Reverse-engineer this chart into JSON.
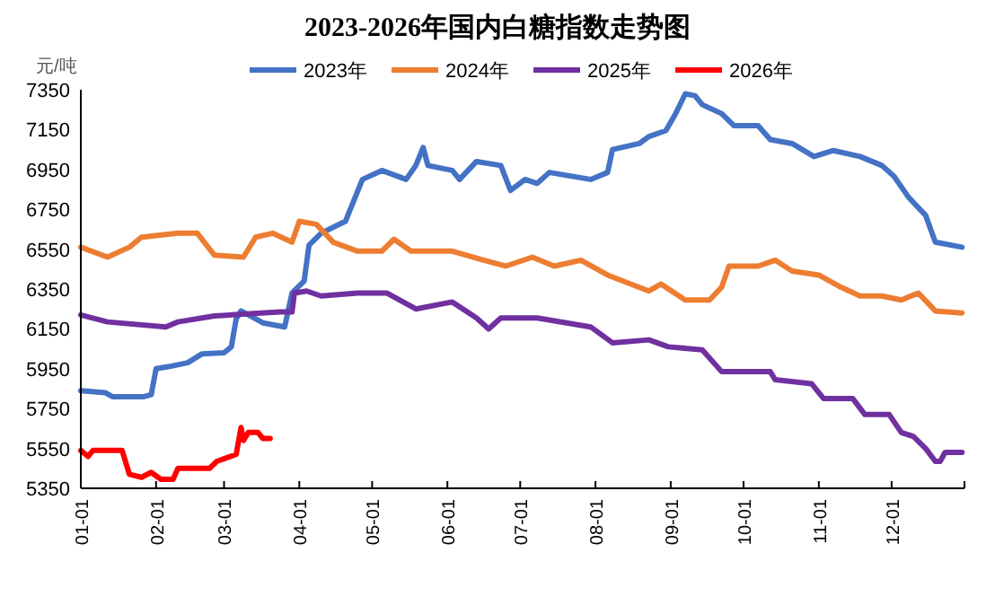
{
  "chart_data": {
    "type": "line",
    "title": "2023-2026年国内白糖指数走势图",
    "ylabel": "元/吨",
    "xlim": [
      "--01-01",
      "--12-31"
    ],
    "xticks": [
      {
        "value": "--01-01",
        "label": "01-01"
      },
      {
        "value": "--02-01",
        "label": "02-01"
      },
      {
        "value": "--03-01",
        "label": "03-01"
      },
      {
        "value": "--04-01",
        "label": "04-01"
      },
      {
        "value": "--05-01",
        "label": "05-01"
      },
      {
        "value": "--06-01",
        "label": "06-01"
      },
      {
        "value": "--07-01",
        "label": "07-01"
      },
      {
        "value": "--08-01",
        "label": "08-01"
      },
      {
        "value": "--09-01",
        "label": "09-01"
      },
      {
        "value": "--10-01",
        "label": "10-01"
      },
      {
        "value": "--11-01",
        "label": "11-01"
      },
      {
        "value": "--12-01",
        "label": "12-01"
      }
    ],
    "ylim": [
      5350,
      7350
    ],
    "yticks": [
      5350,
      5550,
      5750,
      5950,
      6150,
      6350,
      6550,
      6750,
      6950,
      7150,
      7350
    ],
    "grid": false,
    "legend": "top",
    "line_style": "solid",
    "series": [
      {
        "name": "2023年",
        "color": "#4472c4",
        "x": [
          "--01-01",
          "--01-11",
          "--01-14",
          "--01-27",
          "--01-30",
          "--02-01",
          "--02-06",
          "--02-14",
          "--02-20",
          "--03-01",
          "--03-04",
          "--03-06",
          "--03-08",
          "--03-17",
          "--03-26",
          "--03-29",
          "--04-03",
          "--04-05",
          "--04-10",
          "--04-20",
          "--04-23",
          "--04-27",
          "--05-05",
          "--05-15",
          "--05-19",
          "--05-22",
          "--05-24",
          "--06-03",
          "--06-06",
          "--06-13",
          "--06-23",
          "--06-27",
          "--07-03",
          "--07-08",
          "--07-13",
          "--07-30",
          "--08-06",
          "--08-08",
          "--08-19",
          "--08-23",
          "--08-30",
          "--09-03",
          "--09-07",
          "--09-11",
          "--09-14",
          "--09-22",
          "--09-27",
          "--10-07",
          "--10-12",
          "--10-21",
          "--10-30",
          "--11-07",
          "--11-18",
          "--11-27",
          "--12-02",
          "--12-08",
          "--12-15",
          "--12-19",
          "--12-30"
        ],
        "values": [
          5840,
          5830,
          5810,
          5810,
          5820,
          5950,
          5960,
          5980,
          6025,
          6030,
          6060,
          6200,
          6240,
          6180,
          6160,
          6330,
          6390,
          6570,
          6630,
          6690,
          6780,
          6900,
          6945,
          6900,
          6970,
          7060,
          6970,
          6945,
          6900,
          6990,
          6970,
          6845,
          6900,
          6880,
          6935,
          6900,
          6935,
          7050,
          7080,
          7115,
          7145,
          7230,
          7330,
          7320,
          7275,
          7230,
          7170,
          7170,
          7100,
          7080,
          7015,
          7045,
          7015,
          6970,
          6915,
          6810,
          6720,
          6585,
          6560
        ]
      },
      {
        "name": "2024年",
        "color": "#ed7d31",
        "x": [
          "--01-01",
          "--01-12",
          "--01-21",
          "--01-26",
          "--02-10",
          "--02-18",
          "--02-25",
          "--03-09",
          "--03-14",
          "--03-21",
          "--03-29",
          "--04-01",
          "--04-08",
          "--04-15",
          "--04-25",
          "--05-05",
          "--05-10",
          "--05-17",
          "--06-03",
          "--06-16",
          "--06-25",
          "--07-06",
          "--07-15",
          "--07-26",
          "--08-06",
          "--08-23",
          "--08-28",
          "--09-07",
          "--09-17",
          "--09-22",
          "--09-25",
          "--10-07",
          "--10-14",
          "--10-21",
          "--11-01",
          "--11-10",
          "--11-18",
          "--11-27",
          "--12-05",
          "--12-12",
          "--12-19",
          "--12-30"
        ],
        "values": [
          6560,
          6510,
          6560,
          6610,
          6630,
          6630,
          6520,
          6510,
          6610,
          6630,
          6585,
          6690,
          6675,
          6585,
          6540,
          6540,
          6600,
          6540,
          6540,
          6495,
          6465,
          6510,
          6465,
          6495,
          6420,
          6340,
          6375,
          6295,
          6295,
          6360,
          6465,
          6465,
          6495,
          6440,
          6420,
          6360,
          6315,
          6315,
          6295,
          6330,
          6240,
          6230
        ]
      },
      {
        "name": "2025年",
        "color": "#7030a0",
        "x": [
          "--01-01",
          "--01-12",
          "--02-05",
          "--02-10",
          "--02-25",
          "--03-24",
          "--03-29",
          "--03-30",
          "--04-04",
          "--04-10",
          "--04-25",
          "--05-07",
          "--05-19",
          "--06-03",
          "--06-13",
          "--06-18",
          "--06-23",
          "--07-08",
          "--07-30",
          "--08-08",
          "--08-23",
          "--08-31",
          "--09-14",
          "--09-22",
          "--10-12",
          "--10-14",
          "--10-29",
          "--11-03",
          "--11-15",
          "--11-20",
          "--11-30",
          "--12-05",
          "--12-10",
          "--12-15",
          "--12-19",
          "--12-21",
          "--12-23",
          "--12-30"
        ],
        "values": [
          6220,
          6185,
          6160,
          6185,
          6215,
          6235,
          6235,
          6330,
          6340,
          6315,
          6330,
          6330,
          6250,
          6285,
          6205,
          6150,
          6205,
          6205,
          6160,
          6080,
          6095,
          6060,
          6045,
          5935,
          5935,
          5895,
          5875,
          5800,
          5800,
          5720,
          5720,
          5630,
          5610,
          5550,
          5485,
          5485,
          5530,
          5530
        ]
      },
      {
        "name": "2026年",
        "color": "#ff0000",
        "x": [
          "--01-01",
          "--01-04",
          "--01-06",
          "--01-18",
          "--01-21",
          "--01-26",
          "--01-30",
          "--02-03",
          "--02-08",
          "--02-10",
          "--02-23",
          "--02-26",
          "--03-06",
          "--03-08",
          "--03-09",
          "--03-11",
          "--03-15",
          "--03-17",
          "--03-20"
        ],
        "values": [
          5540,
          5510,
          5540,
          5540,
          5420,
          5405,
          5430,
          5395,
          5395,
          5450,
          5450,
          5485,
          5520,
          5655,
          5590,
          5630,
          5630,
          5600,
          5600
        ]
      }
    ]
  }
}
